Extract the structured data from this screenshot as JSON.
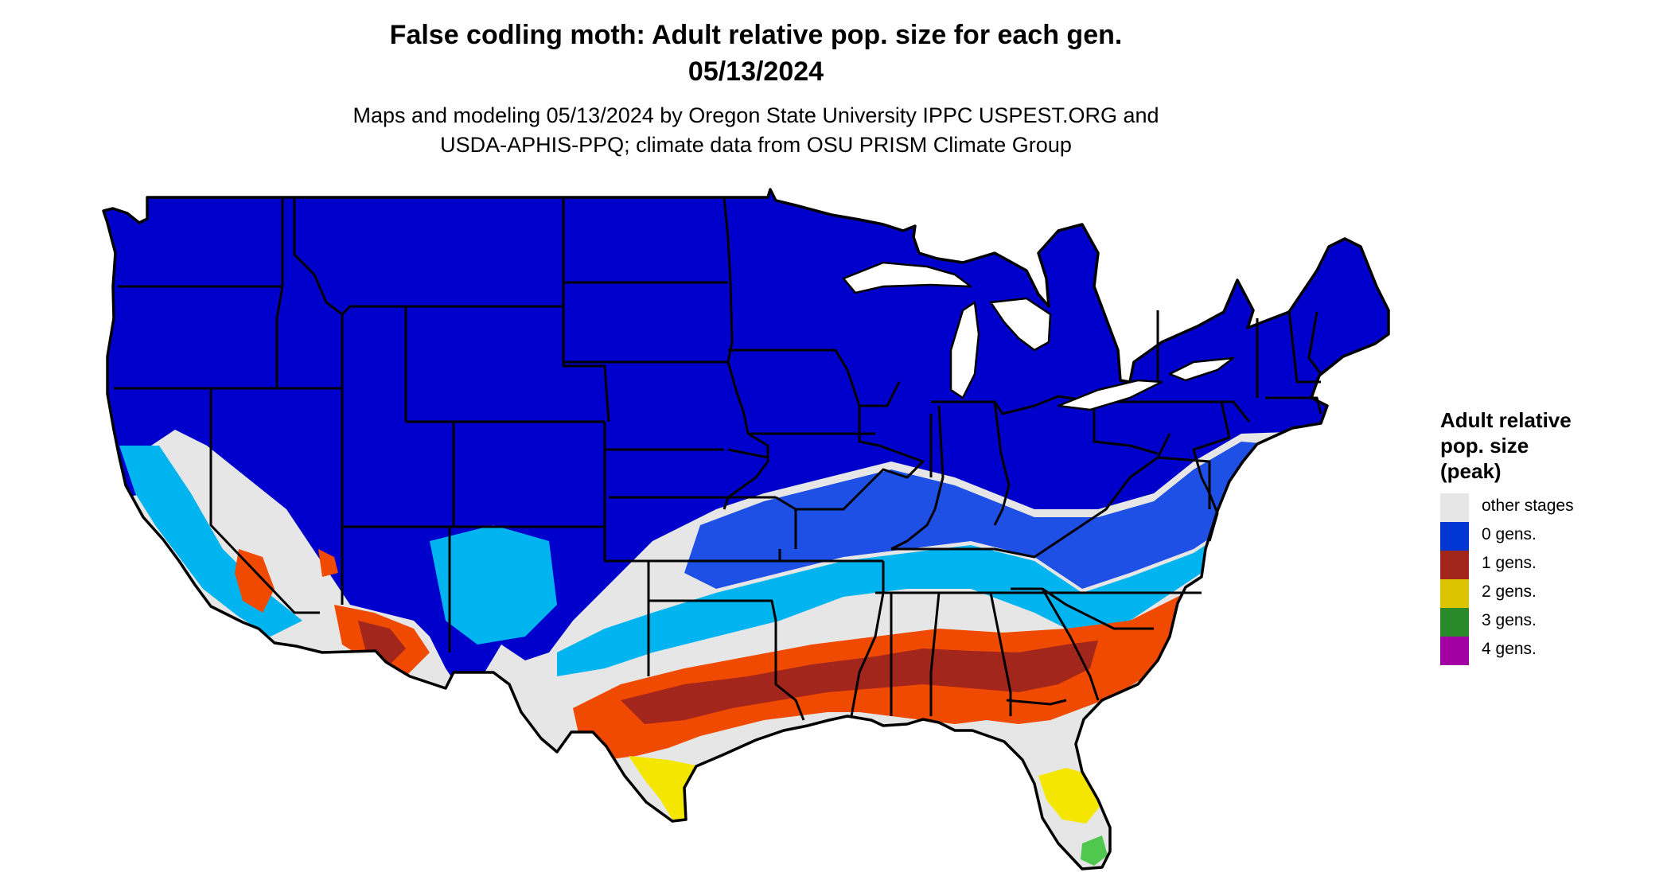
{
  "title": {
    "line1": "False codling moth: Adult relative pop. size for each gen.",
    "line2": "05/13/2024"
  },
  "subtitle": {
    "line1": "Maps and modeling 05/13/2024 by Oregon State University IPPC USPEST.ORG and",
    "line2": "USDA-APHIS-PPQ; climate data from OSU PRISM Climate Group"
  },
  "legend": {
    "title_lines": [
      "Adult relative",
      "pop. size",
      "(peak)"
    ],
    "items": [
      {
        "label": "other stages",
        "color": "#e6e6e6"
      },
      {
        "label": "0 gens.",
        "color": "#0037d4"
      },
      {
        "label": "1 gens.",
        "color": "#a3261c"
      },
      {
        "label": "2 gens.",
        "color": "#dcc400"
      },
      {
        "label": "3 gens.",
        "color": "#2a8a2a"
      },
      {
        "label": "4 gens.",
        "color": "#a300a3"
      }
    ]
  },
  "map_colors": {
    "background_land": "#e6e6e6",
    "zero_gens_dark": "#0000cd",
    "zero_gens_mid": "#1e50e6",
    "zero_gens_light": "#00b4f0",
    "one_gen_dark": "#a3261c",
    "one_gen_bright": "#f04a00",
    "two_gens": "#f5e600",
    "three_gens": "#50c850",
    "border": "#000000"
  }
}
